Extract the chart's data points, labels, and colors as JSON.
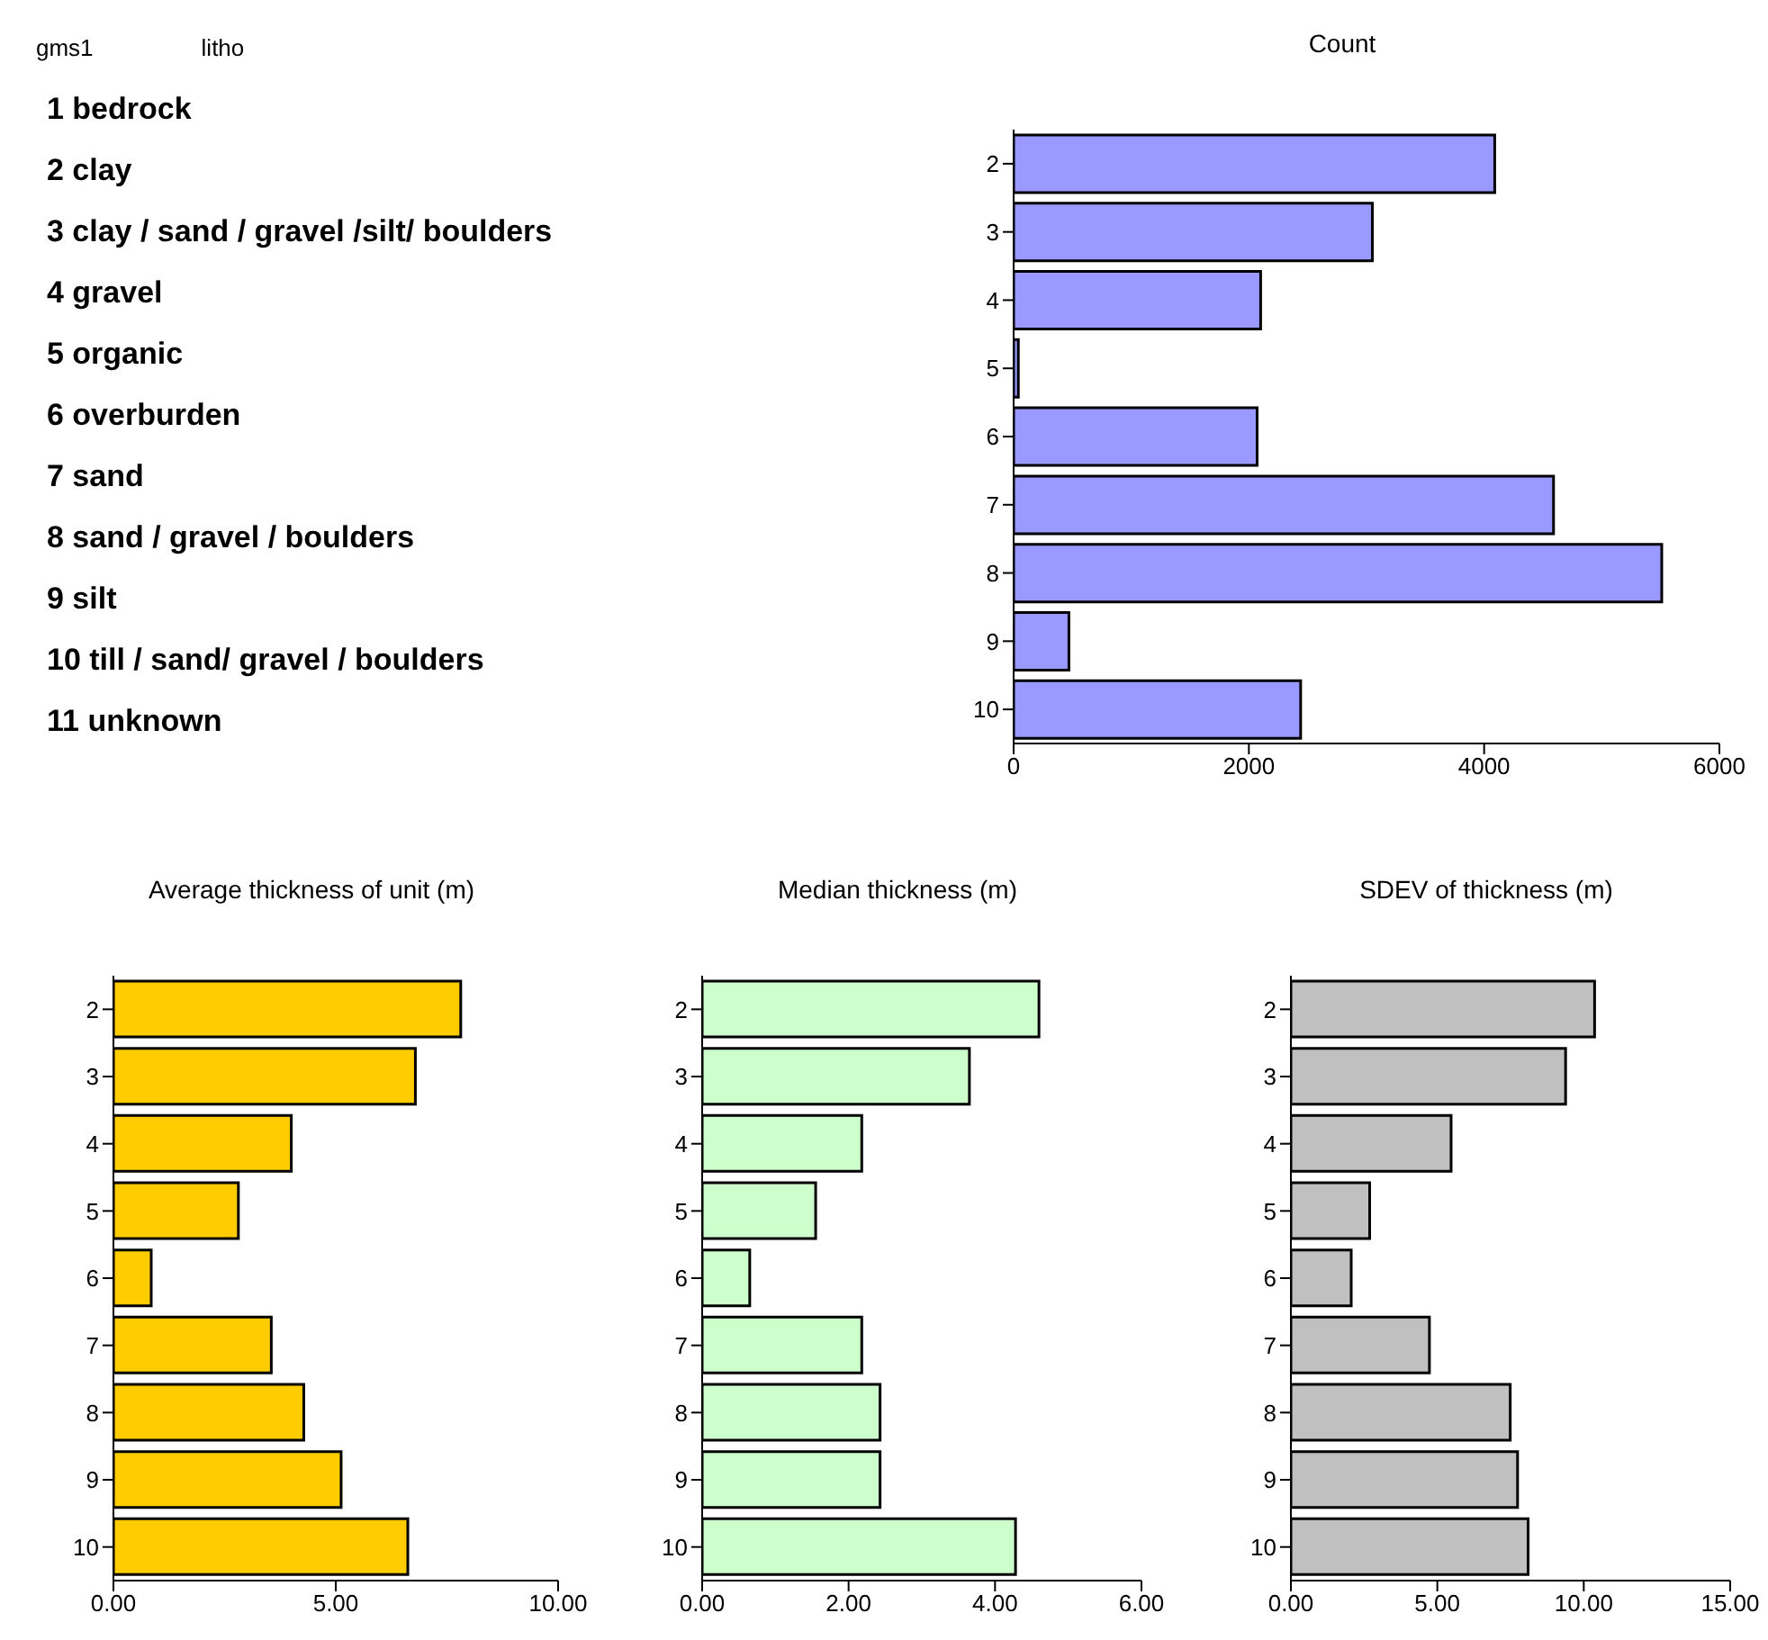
{
  "chart_data": [
    {
      "type": "other",
      "annotations": [
        "gms1",
        "litho",
        "1 bedrock",
        "2 clay",
        "3 clay / sand / gravel /silt/ boulders",
        "4 gravel",
        "5 organic",
        "6 overburden",
        "7 sand",
        "8 sand / gravel / boulders",
        "9 silt",
        "10 till / sand/ gravel / boulders",
        "11 unknown"
      ]
    },
    {
      "type": "bar",
      "orientation": "horizontal",
      "title": "Count",
      "categories": [
        "2",
        "3",
        "4",
        "5",
        "6",
        "7",
        "8",
        "9",
        "10"
      ],
      "values": [
        4090,
        3050,
        2100,
        40,
        2070,
        4590,
        5510,
        470,
        2440
      ],
      "color": "#9999ff",
      "xlim": [
        0,
        6000
      ],
      "xticks": [
        0,
        2000,
        4000,
        6000
      ],
      "grid": false,
      "legend": false
    },
    {
      "type": "bar",
      "orientation": "horizontal",
      "title": "Average thickness of unit (m)",
      "categories": [
        "2",
        "3",
        "4",
        "5",
        "6",
        "7",
        "8",
        "9",
        "10"
      ],
      "values": [
        7.81,
        6.79,
        4.0,
        2.81,
        0.85,
        3.55,
        4.28,
        5.12,
        6.62
      ],
      "color": "#ffcc00",
      "xlim": [
        0,
        10
      ],
      "xticks": [
        {
          "value": 0,
          "label": "0.00"
        },
        {
          "value": 5,
          "label": "5.00"
        },
        {
          "value": 10,
          "label": "10.00"
        }
      ],
      "grid": false,
      "legend": false
    },
    {
      "type": "bar",
      "orientation": "horizontal",
      "title": "Median thickness (m)",
      "categories": [
        "2",
        "3",
        "4",
        "5",
        "6",
        "7",
        "8",
        "9",
        "10"
      ],
      "values": [
        4.6,
        3.65,
        2.18,
        1.55,
        0.65,
        2.18,
        2.43,
        2.43,
        4.28
      ],
      "color": "#ccffcc",
      "xlim": [
        0,
        6
      ],
      "xticks": [
        {
          "value": 0,
          "label": "0.00"
        },
        {
          "value": 2,
          "label": "2.00"
        },
        {
          "value": 4,
          "label": "4.00"
        },
        {
          "value": 6,
          "label": "6.00"
        }
      ],
      "grid": false,
      "legend": false
    },
    {
      "type": "bar",
      "orientation": "horizontal",
      "title": "SDEV of thickness (m)",
      "categories": [
        "2",
        "3",
        "4",
        "5",
        "6",
        "7",
        "8",
        "9",
        "10"
      ],
      "values": [
        10.37,
        9.38,
        5.47,
        2.69,
        2.06,
        4.73,
        7.49,
        7.74,
        8.1
      ],
      "color": "#c0c0c0",
      "xlim": [
        0,
        15
      ],
      "xticks": [
        {
          "value": 0,
          "label": "0.00"
        },
        {
          "value": 5,
          "label": "5.00"
        },
        {
          "value": 10,
          "label": "10.00"
        },
        {
          "value": 15,
          "label": "15.00"
        }
      ],
      "grid": false,
      "legend": false
    }
  ]
}
